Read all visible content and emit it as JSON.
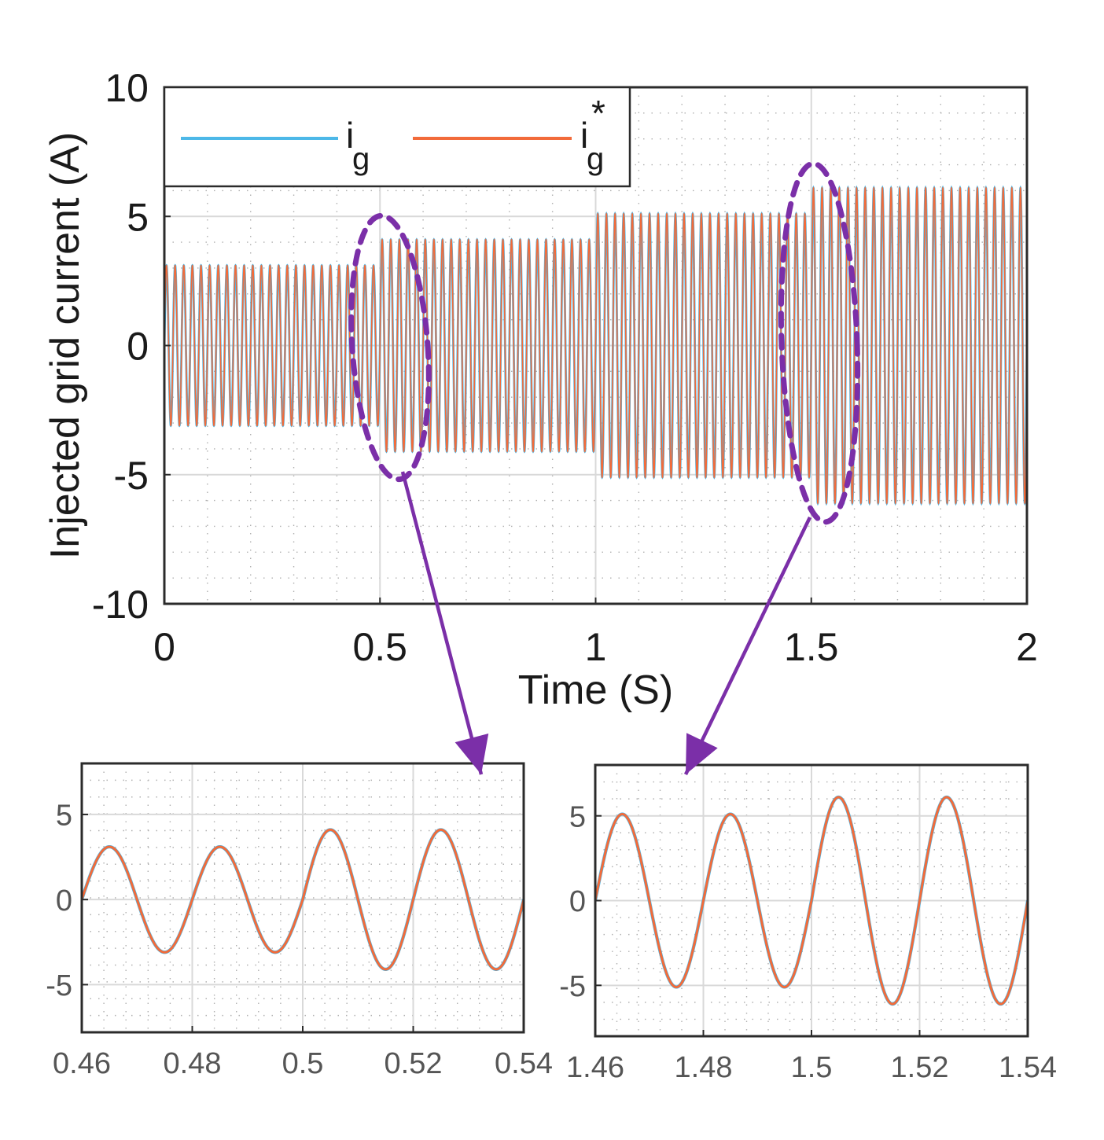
{
  "colors": {
    "i_g": "#4db8e8",
    "i_g_ref": "#f26b3a",
    "annotation": "#7b2fa8",
    "grid_major": "#d9d9d9",
    "grid_minor": "#b0b0b0",
    "axes": "#2b2b2b"
  },
  "chart_data": [
    {
      "id": "main",
      "type": "line",
      "xlabel": "Time (S)",
      "ylabel": "Injected grid current (A)",
      "xlim": [
        0,
        2
      ],
      "ylim": [
        -10,
        10
      ],
      "xticks": [
        0,
        0.5,
        1,
        1.5,
        2
      ],
      "xtick_labels": [
        "0",
        "0.5",
        "1",
        "1.5",
        "2"
      ],
      "yticks": [
        -10,
        -5,
        0,
        5,
        10
      ],
      "ytick_labels": [
        "-10",
        "-5",
        "0",
        "5",
        "10"
      ],
      "grid": true,
      "frequency_hz": 50,
      "amplitude_segments": [
        {
          "t_start": 0,
          "t_end": 0.5,
          "amplitude": 3.1
        },
        {
          "t_start": 0.5,
          "t_end": 1.0,
          "amplitude": 4.1
        },
        {
          "t_start": 1.0,
          "t_end": 1.5,
          "amplitude": 5.1
        },
        {
          "t_start": 1.5,
          "t_end": 2.0,
          "amplitude": 6.1
        }
      ],
      "series": [
        {
          "name": "i_g",
          "label_base": "i",
          "label_sub": "g",
          "label_sup": ""
        },
        {
          "name": "i_g_ref",
          "label_base": "i",
          "label_sub": "g",
          "label_sup": "*"
        }
      ],
      "legend": "top-left",
      "annotations": [
        {
          "type": "ellipse",
          "t_center": 0.5
        },
        {
          "type": "ellipse",
          "t_center": 1.5
        }
      ]
    },
    {
      "id": "zoom1",
      "type": "line",
      "xlim": [
        0.46,
        0.54
      ],
      "ylim": [
        -7.8,
        8
      ],
      "xticks": [
        0.46,
        0.48,
        0.5,
        0.52,
        0.54
      ],
      "xtick_labels": [
        "0.46",
        "0.48",
        "0.5",
        "0.52",
        "0.54"
      ],
      "yticks": [
        -5,
        0,
        5
      ],
      "ytick_labels": [
        "-5",
        "0",
        "5"
      ],
      "grid": true,
      "frequency_hz": 50,
      "amplitude_segments": [
        {
          "t_start": 0.46,
          "t_end": 0.5,
          "amplitude": 3.1
        },
        {
          "t_start": 0.5,
          "t_end": 0.54,
          "amplitude": 4.1
        }
      ]
    },
    {
      "id": "zoom2",
      "type": "line",
      "xlim": [
        1.46,
        1.54
      ],
      "ylim": [
        -8,
        8
      ],
      "xticks": [
        1.46,
        1.48,
        1.5,
        1.52,
        1.54
      ],
      "xtick_labels": [
        "1.46",
        "1.48",
        "1.5",
        "1.52",
        "1.54"
      ],
      "yticks": [
        -5,
        0,
        5
      ],
      "ytick_labels": [
        "-5",
        "0",
        "5"
      ],
      "grid": true,
      "frequency_hz": 50,
      "amplitude_segments": [
        {
          "t_start": 1.46,
          "t_end": 1.5,
          "amplitude": 5.1
        },
        {
          "t_start": 1.5,
          "t_end": 1.54,
          "amplitude": 6.1
        }
      ]
    }
  ]
}
